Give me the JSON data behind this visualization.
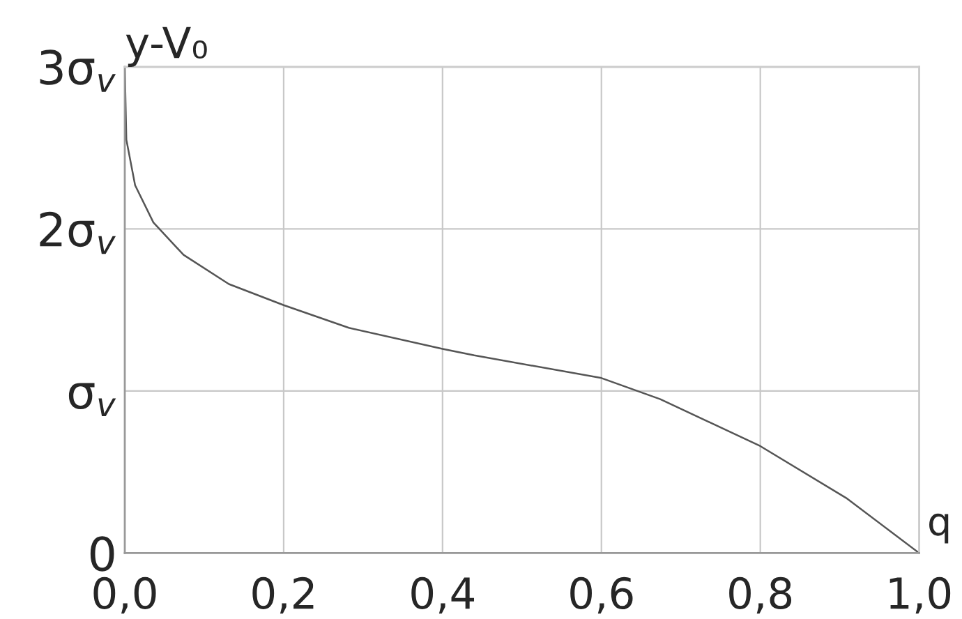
{
  "chart_data": {
    "type": "line",
    "xlabel": "q",
    "ylabel": "y-V₀",
    "x": [
      0,
      0.002,
      0.013,
      0.036,
      0.074,
      0.131,
      0.2,
      0.282,
      0.4,
      0.44,
      0.6,
      0.674,
      0.8,
      0.908,
      1.0
    ],
    "series": [
      {
        "color": "#555555",
        "values": [
          3.0,
          2.55,
          2.27,
          2.04,
          1.84,
          1.66,
          1.53,
          1.39,
          1.26,
          1.22,
          1.08,
          0.95,
          0.66,
          0.34,
          0
        ]
      }
    ],
    "xlim": [
      0,
      1
    ],
    "ylim": [
      0,
      3
    ],
    "xticks": [
      {
        "value": 0,
        "label": "0,0"
      },
      {
        "value": 0.2,
        "label": "0,2"
      },
      {
        "value": 0.4,
        "label": "0,4"
      },
      {
        "value": 0.6,
        "label": "0,6"
      },
      {
        "value": 0.8,
        "label": "0,8"
      },
      {
        "value": 1.0,
        "label": "1,0"
      }
    ],
    "yticks": [
      {
        "value": 0,
        "label": "0"
      },
      {
        "value": 1,
        "label": "σ$_{v}$"
      },
      {
        "value": 2,
        "label": "2σ$_{v}$"
      },
      {
        "value": 3,
        "label": "3σ$_{v}$"
      }
    ],
    "grid": true,
    "marker": "none",
    "line_style": "solid"
  }
}
